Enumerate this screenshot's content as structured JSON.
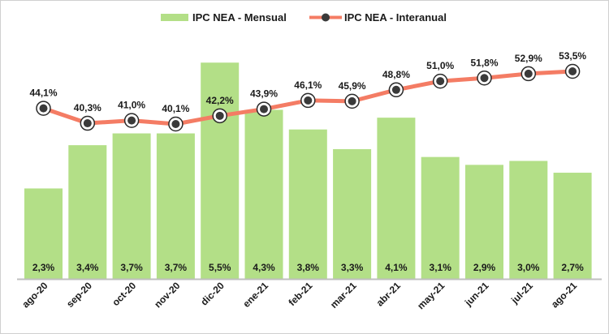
{
  "chart_data": {
    "type": "bar+line",
    "title": "",
    "categories": [
      "ago-20",
      "sep-20",
      "oct-20",
      "nov-20",
      "dic-20",
      "ene-21",
      "feb-21",
      "mar-21",
      "abr-21",
      "may-21",
      "jun-21",
      "jul-21",
      "ago-21"
    ],
    "series": [
      {
        "name": "IPC NEA - Mensual",
        "type": "bar",
        "color": "#b3df87",
        "values": [
          2.3,
          3.4,
          3.7,
          3.7,
          5.5,
          4.3,
          3.8,
          3.3,
          4.1,
          3.1,
          2.9,
          3.0,
          2.7
        ],
        "labels": [
          "2,3%",
          "3,4%",
          "3,7%",
          "3,7%",
          "5,5%",
          "4,3%",
          "3,8%",
          "3,3%",
          "4,1%",
          "3,1%",
          "2,9%",
          "3,0%",
          "2,7%"
        ]
      },
      {
        "name": "IPC NEA - Interanual",
        "type": "line",
        "color": "#f47c64",
        "marker_color": "#3a3a3a",
        "values": [
          44.1,
          40.3,
          41.0,
          40.1,
          42.2,
          43.9,
          46.1,
          45.9,
          48.8,
          51.0,
          51.8,
          52.9,
          53.5
        ],
        "labels": [
          "44,1%",
          "40,3%",
          "41,0%",
          "40,1%",
          "42,2%",
          "43,9%",
          "46,1%",
          "45,9%",
          "48,8%",
          "51,0%",
          "51,8%",
          "52,9%",
          "53,5%"
        ]
      }
    ],
    "legend": "top",
    "grid": false,
    "xlabel": "",
    "ylabel": ""
  }
}
